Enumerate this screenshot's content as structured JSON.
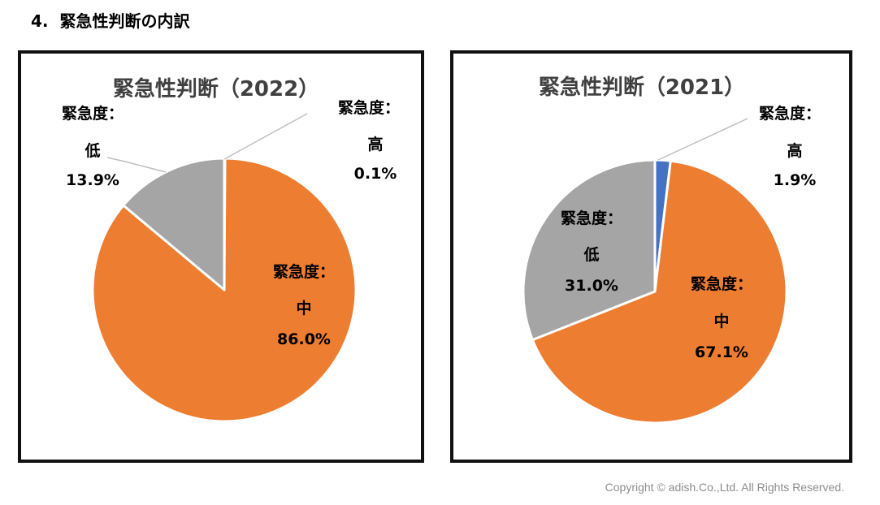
{
  "heading": {
    "number": "4.",
    "text": "緊急性判断の内訳"
  },
  "copyright": "Copyright © adish.Co.,Ltd.  All Rights Reserved.",
  "colors": {
    "high": "#4472C4",
    "medium": "#ED7D31",
    "low": "#A5A5A5",
    "leader": "#BFBFBF"
  },
  "chart_data": [
    {
      "type": "pie",
      "title": "緊急性判断（2022）",
      "slices": [
        {
          "key": "high",
          "label_line1": "緊急度：",
          "label_line2": "高",
          "value": 0.1,
          "value_text": "0.1%"
        },
        {
          "key": "medium",
          "label_line1": "緊急度：",
          "label_line2": "中",
          "value": 86.0,
          "value_text": "86.0%"
        },
        {
          "key": "low",
          "label_line1": "緊急度：",
          "label_line2": "低",
          "value": 13.9,
          "value_text": "13.9%"
        }
      ]
    },
    {
      "type": "pie",
      "title": "緊急性判断（2021）",
      "slices": [
        {
          "key": "high",
          "label_line1": "緊急度：",
          "label_line2": "高",
          "value": 1.9,
          "value_text": "1.9%"
        },
        {
          "key": "medium",
          "label_line1": "緊急度：",
          "label_line2": "中",
          "value": 67.1,
          "value_text": "67.1%"
        },
        {
          "key": "low",
          "label_line1": "緊急度：",
          "label_line2": "低",
          "value": 31.0,
          "value_text": "31.0%"
        }
      ]
    }
  ]
}
